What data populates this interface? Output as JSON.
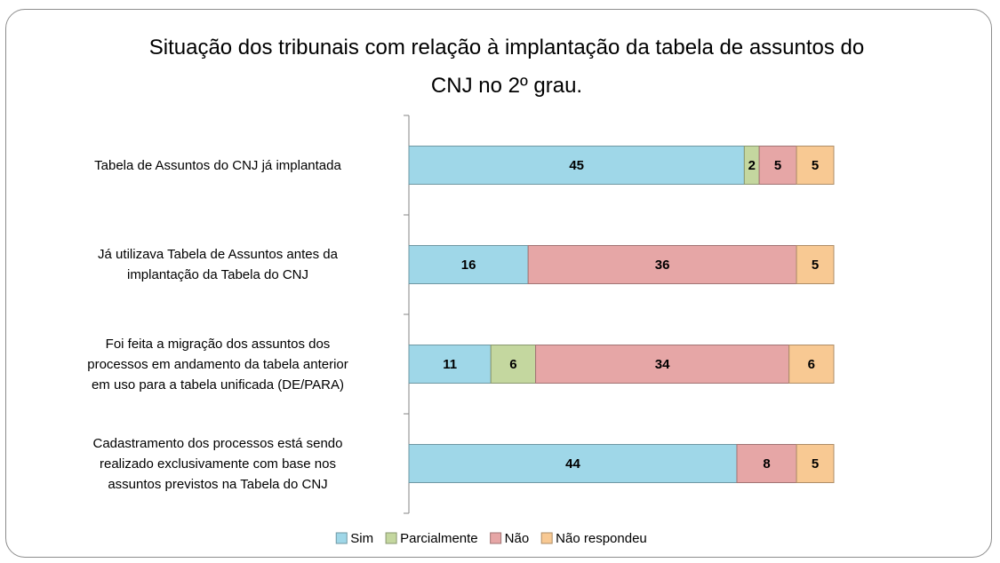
{
  "chart_data": {
    "type": "stacked-bar-horizontal",
    "title": "Situação dos tribunais com relação à implantação da tabela de assuntos do CNJ no 2º grau.",
    "categories": [
      "Tabela de Assuntos do CNJ já implantada",
      "Já utilizava Tabela de Assuntos antes da\nimplantação da Tabela do CNJ",
      "Foi feita a migração dos assuntos dos\nprocessos em andamento da tabela anterior\nem uso para a tabela unificada (DE/PARA)",
      "Cadastramento dos processos está sendo\nrealizado exclusivamente com base nos\nassuntos previstos na Tabela do CNJ"
    ],
    "series": [
      {
        "name": "Sim",
        "color": "#9fd7e8",
        "values": [
          45,
          16,
          11,
          44
        ]
      },
      {
        "name": "Parcialmente",
        "color": "#c4d79f",
        "values": [
          2,
          null,
          6,
          null
        ]
      },
      {
        "name": "Não",
        "color": "#e6a6a6",
        "values": [
          5,
          36,
          34,
          8
        ]
      },
      {
        "name": "Não respondeu",
        "color": "#f8c993",
        "values": [
          5,
          5,
          6,
          5
        ]
      }
    ],
    "xlim": [
      0,
      57
    ],
    "legend": "bottom"
  }
}
